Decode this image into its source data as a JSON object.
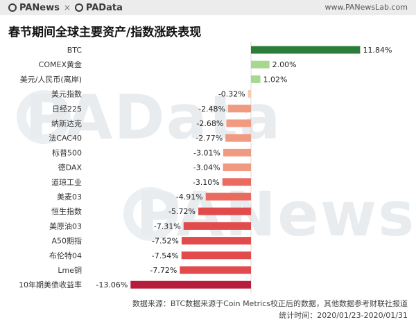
{
  "header": {
    "brand_left": "PANews",
    "brand_sep": "×",
    "brand_right": "PAData",
    "site": "www.PANewsLab.com",
    "logo_icon": "panews-logo-icon"
  },
  "watermark": {
    "text1": "PAData",
    "text2": "PANews"
  },
  "chart_data": {
    "type": "bar",
    "orientation": "horizontal",
    "title": "春节期间全球主要资产/指数涨跌表现",
    "xlabel": "",
    "ylabel": "",
    "grid": false,
    "value_suffix": "%",
    "categories": [
      "BTC",
      "COMEX黄金",
      "美元/人民币(离岸)",
      "美元指数",
      "日经225",
      "纳斯达克",
      "法CAC40",
      "标普500",
      "德DAX",
      "道琼工业",
      "美麦03",
      "恒生指数",
      "美原油03",
      "A50期指",
      "布伦特04",
      "Lme铜",
      "10年期美债收益率"
    ],
    "values": [
      11.84,
      2.0,
      1.02,
      -0.32,
      -2.48,
      -2.68,
      -2.77,
      -3.01,
      -3.04,
      -3.1,
      -4.91,
      -5.72,
      -7.31,
      -7.52,
      -7.54,
      -7.72,
      -13.06
    ],
    "data_labels": [
      "11.84%",
      "2.00%",
      "1.02%",
      "-0.32%",
      "-2.48%",
      "-2.68%",
      "-2.77%",
      "-3.01%",
      "-3.04%",
      "-3.10%",
      "-4.91%",
      "-5.72%",
      "-7.31%",
      "-7.52%",
      "-7.54%",
      "-7.72%",
      "-13.06%"
    ],
    "xlim": [
      -13.06,
      11.84
    ],
    "colors": {
      "btc": "#2d7d3a",
      "positive": "#a6d98f",
      "small_negative": "#f5cbb0",
      "negative_light": "#f09a82",
      "negative_mid": "#ea6a60",
      "negative_strong": "#e24b4b",
      "extreme": "#b71c3c"
    }
  },
  "footnotes": {
    "source": "数据来源：BTC数据来源于Coin Metrics校正后的数据，其他数据参考财联社报道",
    "period": "统计时间：2020/01/23-2020/01/31"
  }
}
